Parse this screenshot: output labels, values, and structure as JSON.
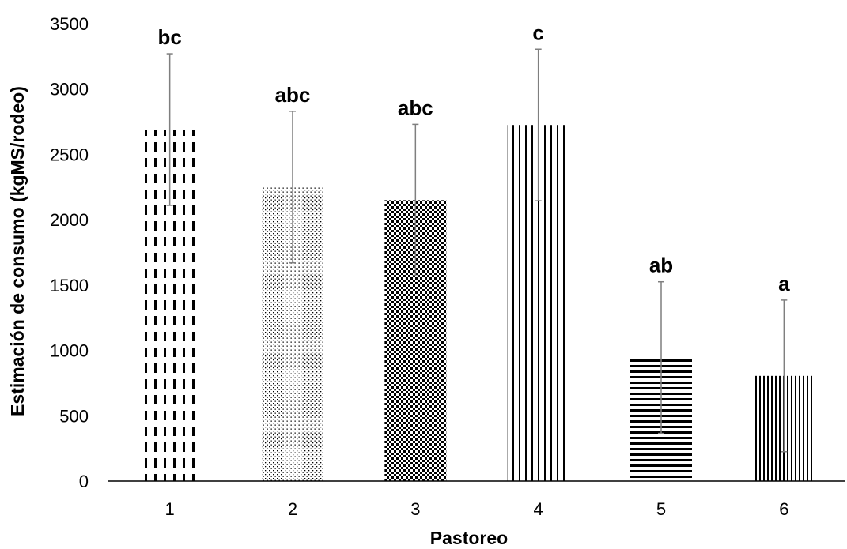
{
  "chart_data": {
    "type": "bar",
    "title": "",
    "xlabel": "Pastoreo",
    "ylabel": "Estimación de consumo (kgMS/rodeo)",
    "categories": [
      "1",
      "2",
      "3",
      "4",
      "5",
      "6"
    ],
    "values": [
      2690,
      2250,
      2150,
      2725,
      945,
      805
    ],
    "error_upper": [
      3270,
      2830,
      2730,
      3305,
      1525,
      1385
    ],
    "error_lower": [
      2110,
      1670,
      1570,
      2145,
      365,
      225
    ],
    "significance_letters": [
      "bc",
      "abc",
      "abc",
      "c",
      "ab",
      "a"
    ],
    "bar_patterns": [
      "dashed-vertical",
      "fine-dots",
      "checker",
      "vertical-lines",
      "horizontal-lines",
      "dense-vertical-lines"
    ],
    "ylim": [
      0,
      3500
    ],
    "yticks": [
      0,
      500,
      1000,
      1500,
      2000,
      2500,
      3000,
      3500
    ],
    "grid": false,
    "colors": {
      "bar_ink": "#000000",
      "error_bar": "#7f7f7f",
      "axis": "#000000"
    }
  }
}
